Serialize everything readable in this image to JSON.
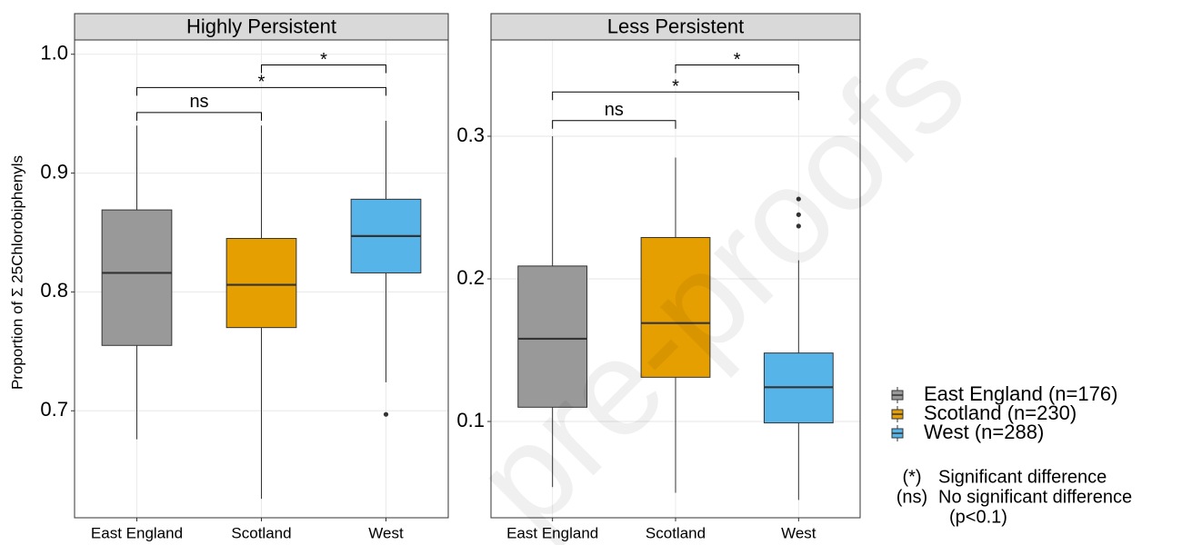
{
  "chart_data": [
    {
      "type": "box",
      "title": "Highly Persistent",
      "categories": [
        "East England",
        "Scotland",
        "West"
      ],
      "colors": [
        "#999999",
        "#E69F00",
        "#56B4E9"
      ],
      "boxes": [
        {
          "low": 0.676,
          "q1": 0.755,
          "median": 0.816,
          "q3": 0.869,
          "high": 0.94,
          "outliers": []
        },
        {
          "low": 0.626,
          "q1": 0.77,
          "median": 0.806,
          "q3": 0.845,
          "high": 0.94,
          "outliers": []
        },
        {
          "low": 0.724,
          "q1": 0.816,
          "median": 0.847,
          "q3": 0.878,
          "high": 0.944,
          "outliers": [
            0.697
          ]
        }
      ],
      "brackets": [
        {
          "from": 0,
          "to": 1,
          "y": 0.951,
          "label": "ns"
        },
        {
          "from": 0,
          "to": 2,
          "y": 0.972,
          "label": "*"
        },
        {
          "from": 1,
          "to": 2,
          "y": 0.991,
          "label": "*"
        }
      ],
      "ylim": [
        0.61,
        1.012
      ],
      "yticks": [
        0.7,
        0.8,
        0.9,
        {
          "value": 1,
          "label": "1.0"
        }
      ],
      "grid": true
    },
    {
      "type": "box",
      "title": "Less Persistent",
      "categories": [
        "East England",
        "Scotland",
        "West"
      ],
      "colors": [
        "#999999",
        "#E69F00",
        "#56B4E9"
      ],
      "boxes": [
        {
          "low": 0.054,
          "q1": 0.11,
          "median": 0.158,
          "q3": 0.209,
          "high": 0.3,
          "outliers": []
        },
        {
          "low": 0.05,
          "q1": 0.131,
          "median": 0.169,
          "q3": 0.229,
          "high": 0.285,
          "outliers": []
        },
        {
          "low": 0.045,
          "q1": 0.099,
          "median": 0.124,
          "q3": 0.148,
          "high": 0.213,
          "outliers": [
            0.256,
            0.245,
            0.237
          ]
        }
      ],
      "brackets": [
        {
          "from": 0,
          "to": 1,
          "y": 0.311,
          "label": "ns"
        },
        {
          "from": 0,
          "to": 2,
          "y": 0.331,
          "label": "*"
        },
        {
          "from": 1,
          "to": 2,
          "y": 0.35,
          "label": "*"
        }
      ],
      "ylim": [
        0.0325,
        0.3675
      ],
      "yticks": [
        0.1,
        0.2,
        0.3
      ],
      "grid": true
    }
  ],
  "y_label": "Proportion of Σ 25Chlorobiphenyls",
  "legend": [
    {
      "name": "East England (n=176)",
      "color": "#999999"
    },
    {
      "name": "Scotland (n=230)",
      "color": "#E69F00"
    },
    {
      "name": "West (n=288)",
      "color": "#56B4E9"
    }
  ],
  "notes": [
    {
      "symbol": "(*)",
      "text": "Significant difference"
    },
    {
      "symbol": "(ns)",
      "text": "No significant difference"
    },
    {
      "symbol": "",
      "text": "(p<0.1)"
    }
  ],
  "watermark": "pre-proofs"
}
